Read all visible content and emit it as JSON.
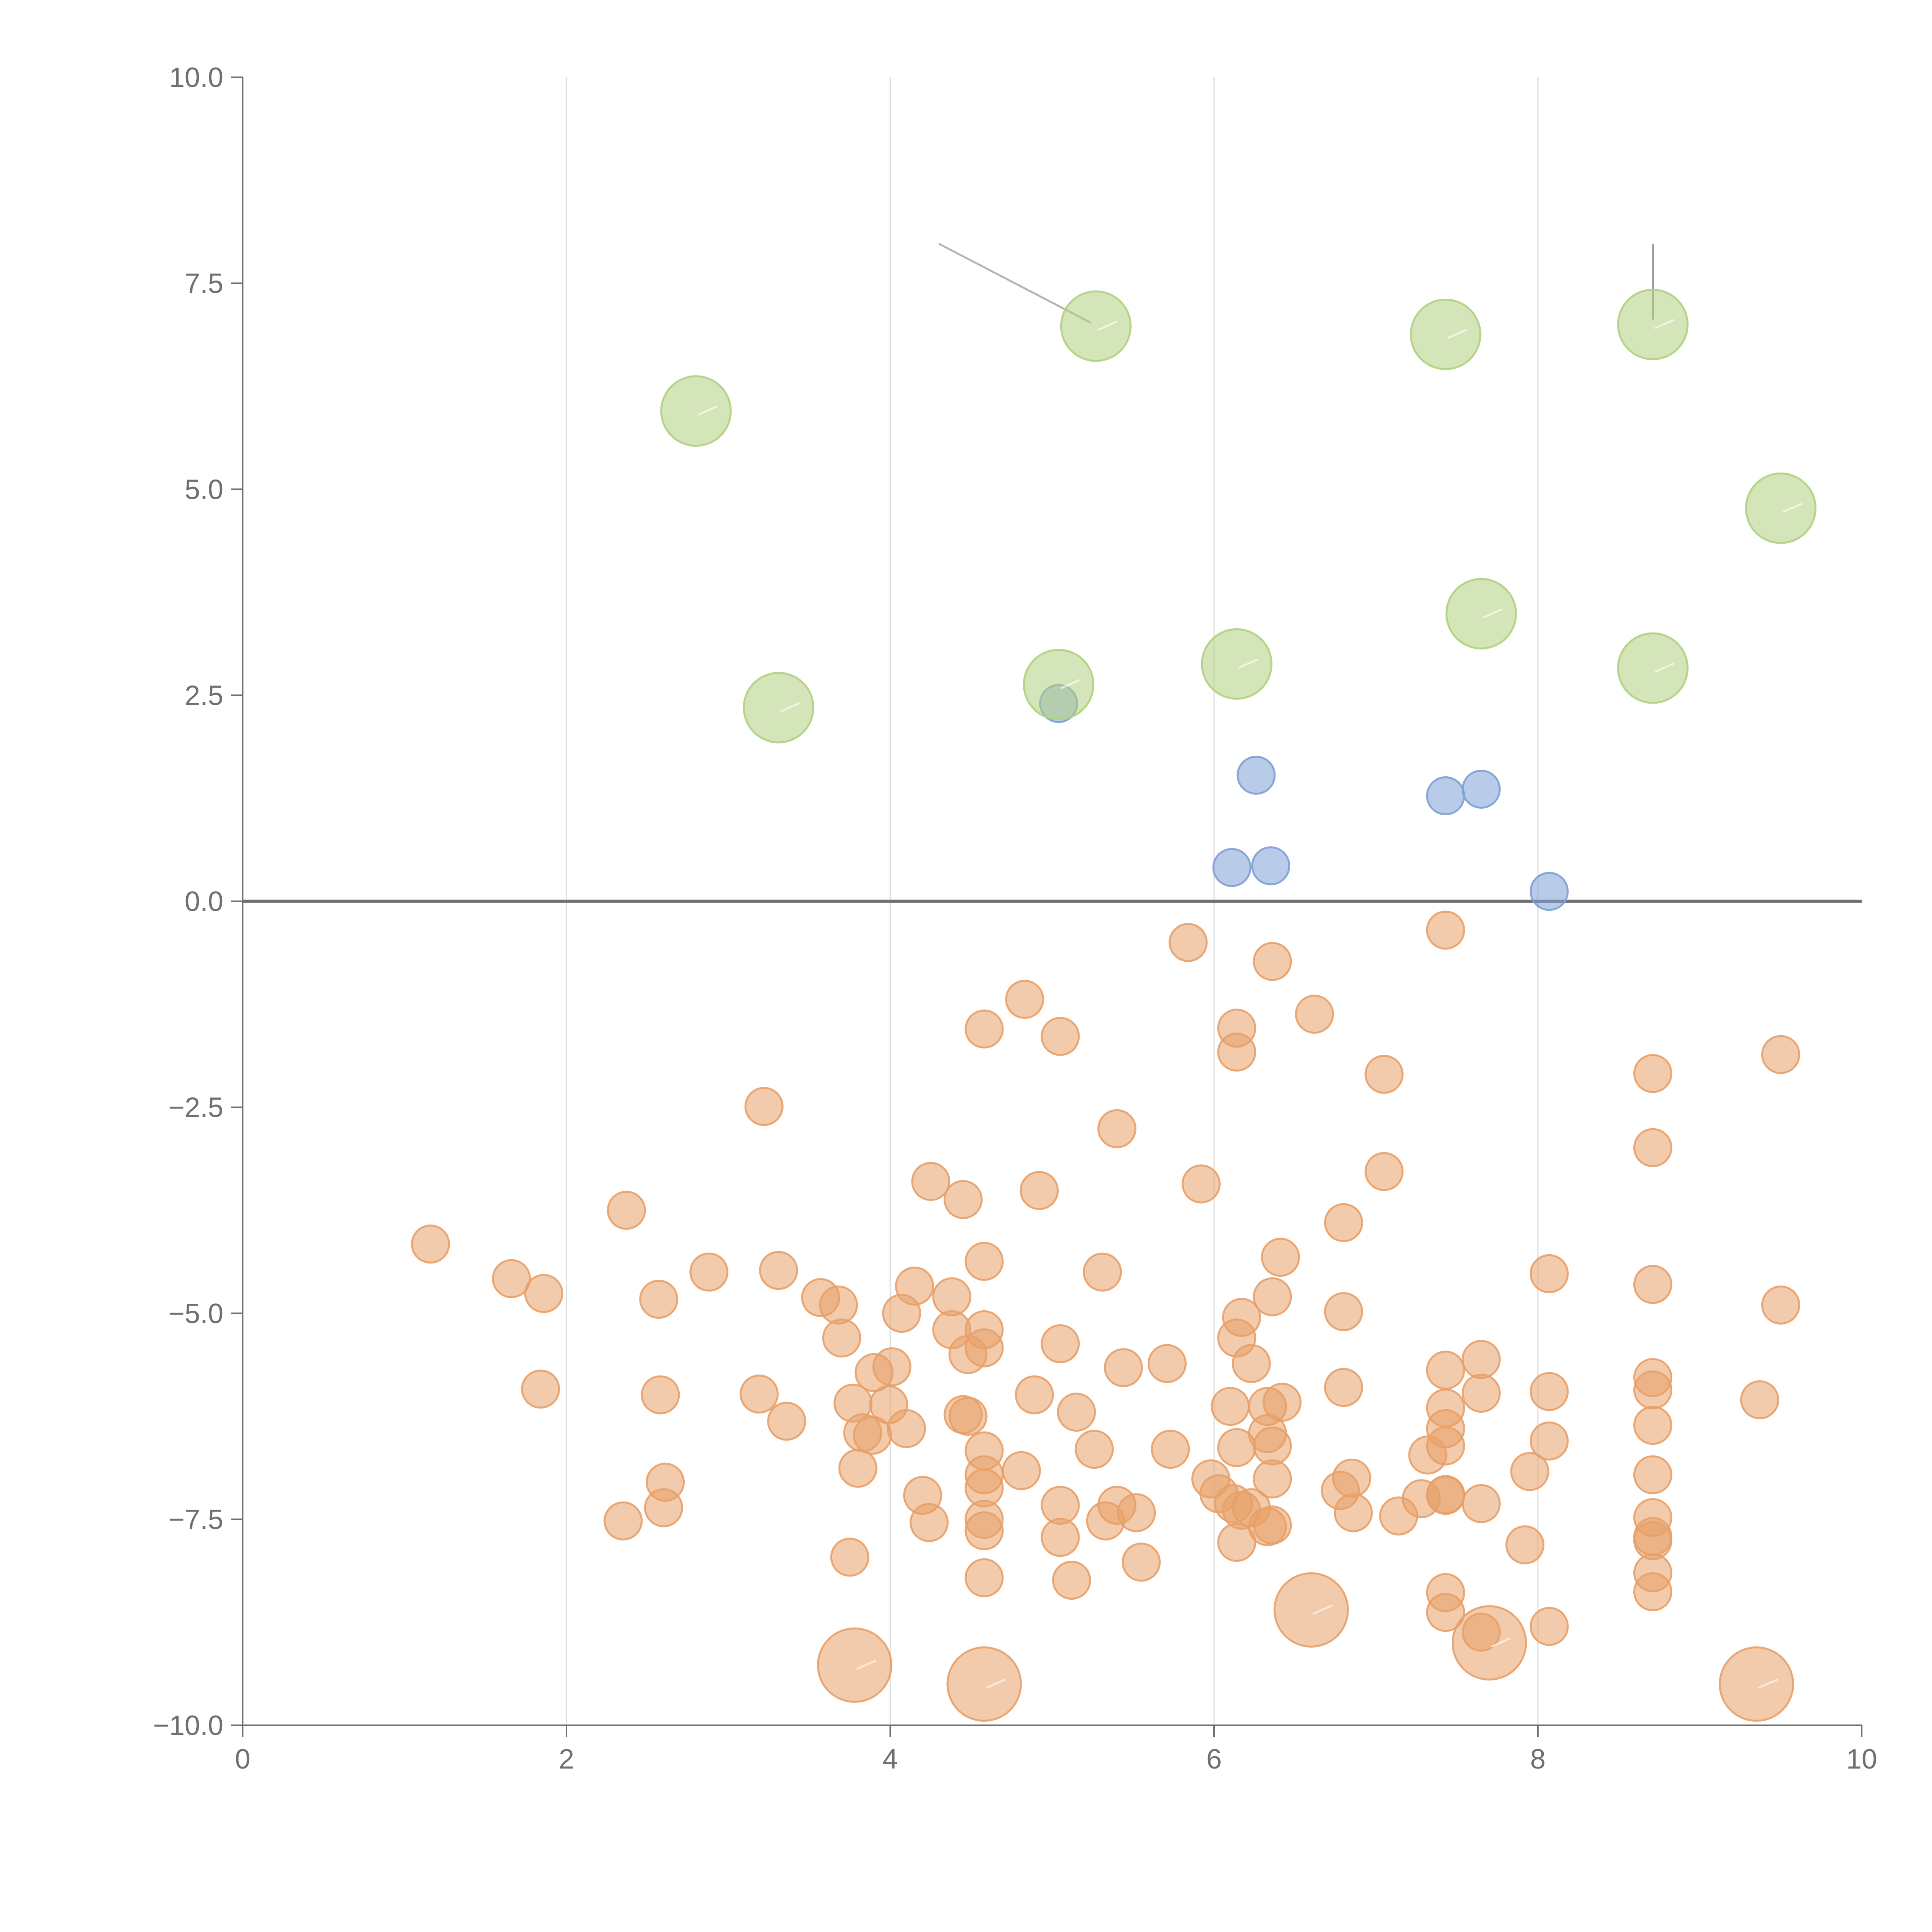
{
  "chart_data": {
    "type": "scatter",
    "title": "",
    "xlabel": "",
    "ylabel": "",
    "xlim": [
      0,
      10
    ],
    "ylim": [
      -10,
      10
    ],
    "x_ticks": [
      "0",
      "2",
      "4",
      "6",
      "8",
      "10"
    ],
    "y_ticks": [
      "−10.0",
      "−7.5",
      "−5.0",
      "−2.5",
      "0.0",
      "2.5",
      "5.0",
      "7.5",
      "10.0"
    ],
    "grid": "vertical",
    "zero_line": true,
    "colors": {
      "orange": "#e8a068",
      "blue": "#7ea0d6",
      "green": "#b0d080",
      "axis": "#707070",
      "grid": "#dddddd"
    },
    "series": [
      {
        "color": "orange",
        "points": [
          [
            7.43,
            -0.35
          ],
          [
            5.84,
            -0.5
          ],
          [
            6.36,
            -0.73
          ],
          [
            4.83,
            -1.19
          ],
          [
            6.62,
            -1.37
          ],
          [
            4.58,
            -1.55
          ],
          [
            6.14,
            -1.54
          ],
          [
            5.05,
            -1.64
          ],
          [
            6.14,
            -1.83
          ],
          [
            9.5,
            -1.86
          ],
          [
            7.05,
            -2.1
          ],
          [
            8.71,
            -2.09
          ],
          [
            3.22,
            -2.49
          ],
          [
            5.4,
            -2.76
          ],
          [
            8.71,
            -2.99
          ],
          [
            7.05,
            -3.28
          ],
          [
            4.25,
            -3.4
          ],
          [
            5.92,
            -3.43
          ],
          [
            4.92,
            -3.51
          ],
          [
            4.45,
            -3.62
          ],
          [
            2.37,
            -3.75
          ],
          [
            6.8,
            -3.9
          ],
          [
            1.16,
            -4.16
          ],
          [
            2.88,
            -4.5
          ],
          [
            3.31,
            -4.48
          ],
          [
            4.58,
            -4.37
          ],
          [
            5.31,
            -4.5
          ],
          [
            6.41,
            -4.32
          ],
          [
            8.07,
            -4.52
          ],
          [
            1.66,
            -4.58
          ],
          [
            1.86,
            -4.76
          ],
          [
            4.15,
            -4.67
          ],
          [
            6.36,
            -4.8
          ],
          [
            8.71,
            -4.65
          ],
          [
            2.57,
            -4.83
          ],
          [
            3.57,
            -4.81
          ],
          [
            3.68,
            -4.9
          ],
          [
            4.38,
            -4.8
          ],
          [
            9.5,
            -4.9
          ],
          [
            4.07,
            -5.0
          ],
          [
            6.8,
            -4.98
          ],
          [
            6.17,
            -5.05
          ],
          [
            4.38,
            -5.2
          ],
          [
            4.58,
            -5.2
          ],
          [
            3.7,
            -5.3
          ],
          [
            6.14,
            -5.3
          ],
          [
            4.58,
            -5.42
          ],
          [
            5.05,
            -5.37
          ],
          [
            4.48,
            -5.5
          ],
          [
            7.65,
            -5.56
          ],
          [
            6.23,
            -5.61
          ],
          [
            5.71,
            -5.61
          ],
          [
            4.01,
            -5.65
          ],
          [
            5.44,
            -5.66
          ],
          [
            3.9,
            -5.72
          ],
          [
            7.43,
            -5.69
          ],
          [
            8.71,
            -5.78
          ],
          [
            1.84,
            -5.92
          ],
          [
            2.58,
            -5.99
          ],
          [
            3.19,
            -5.98
          ],
          [
            3.77,
            -6.09
          ],
          [
            4.89,
            -5.99
          ],
          [
            6.8,
            -5.9
          ],
          [
            8.07,
            -5.95
          ],
          [
            7.65,
            -5.97
          ],
          [
            8.71,
            -5.93
          ],
          [
            9.37,
            -6.05
          ],
          [
            3.99,
            -6.11
          ],
          [
            6.1,
            -6.13
          ],
          [
            6.33,
            -6.13
          ],
          [
            6.42,
            -6.08
          ],
          [
            7.43,
            -6.15
          ],
          [
            4.45,
            -6.23
          ],
          [
            4.48,
            -6.25
          ],
          [
            5.15,
            -6.2
          ],
          [
            3.36,
            -6.31
          ],
          [
            4.1,
            -6.4
          ],
          [
            3.83,
            -6.45
          ],
          [
            3.89,
            -6.48
          ],
          [
            6.33,
            -6.46
          ],
          [
            7.43,
            -6.4
          ],
          [
            8.71,
            -6.36
          ],
          [
            8.07,
            -6.55
          ],
          [
            5.73,
            -6.65
          ],
          [
            5.26,
            -6.65
          ],
          [
            6.14,
            -6.63
          ],
          [
            6.36,
            -6.61
          ],
          [
            7.43,
            -6.61
          ],
          [
            4.58,
            -6.67
          ],
          [
            7.32,
            -6.72
          ],
          [
            3.8,
            -6.88
          ],
          [
            4.81,
            -6.91
          ],
          [
            7.95,
            -6.92
          ],
          [
            4.58,
            -6.96
          ],
          [
            8.71,
            -6.96
          ],
          [
            5.98,
            -7.01
          ],
          [
            6.36,
            -7.01
          ],
          [
            2.61,
            -7.05
          ],
          [
            6.85,
            -7.0
          ],
          [
            4.58,
            -7.12
          ],
          [
            6.78,
            -7.15
          ],
          [
            6.03,
            -7.19
          ],
          [
            4.2,
            -7.21
          ],
          [
            7.43,
            -7.2
          ],
          [
            7.43,
            -7.21
          ],
          [
            7.28,
            -7.25
          ],
          [
            6.12,
            -7.31
          ],
          [
            6.23,
            -7.36
          ],
          [
            7.65,
            -7.31
          ],
          [
            5.05,
            -7.33
          ],
          [
            5.4,
            -7.33
          ],
          [
            5.52,
            -7.42
          ],
          [
            6.17,
            -7.39
          ],
          [
            2.6,
            -7.36
          ],
          [
            6.86,
            -7.42
          ],
          [
            7.14,
            -7.46
          ],
          [
            5.33,
            -7.52
          ],
          [
            4.58,
            -7.5
          ],
          [
            8.71,
            -7.48
          ],
          [
            2.35,
            -7.52
          ],
          [
            4.24,
            -7.54
          ],
          [
            6.33,
            -7.59
          ],
          [
            6.36,
            -7.57
          ],
          [
            4.58,
            -7.64
          ],
          [
            5.05,
            -7.72
          ],
          [
            8.71,
            -7.71
          ],
          [
            8.71,
            -7.76
          ],
          [
            6.14,
            -7.78
          ],
          [
            7.92,
            -7.81
          ],
          [
            3.75,
            -7.96
          ],
          [
            5.55,
            -8.02
          ],
          [
            8.71,
            -8.15
          ],
          [
            4.58,
            -8.21
          ],
          [
            5.12,
            -8.24
          ],
          [
            8.71,
            -8.38
          ],
          [
            7.43,
            -8.39
          ],
          [
            8.07,
            -8.8
          ],
          [
            7.43,
            -8.63
          ],
          [
            7.65,
            -8.87
          ]
        ]
      },
      {
        "color": "orange",
        "size": "large",
        "points": [
          [
            6.6,
            -8.6
          ],
          [
            7.7,
            -9.0
          ],
          [
            3.78,
            -9.27
          ],
          [
            4.58,
            -9.5
          ],
          [
            9.35,
            -9.5
          ]
        ]
      },
      {
        "color": "blue",
        "points": [
          [
            5.04,
            2.4
          ],
          [
            6.26,
            1.53
          ],
          [
            7.43,
            1.28
          ],
          [
            7.65,
            1.36
          ],
          [
            6.11,
            0.41
          ],
          [
            6.35,
            0.43
          ],
          [
            8.07,
            0.12
          ]
        ]
      },
      {
        "color": "green",
        "size": "large",
        "points": [
          [
            2.8,
            5.95
          ],
          [
            5.27,
            6.98
          ],
          [
            7.43,
            6.88
          ],
          [
            8.71,
            7.0
          ],
          [
            9.5,
            4.77
          ],
          [
            3.31,
            2.35
          ],
          [
            5.04,
            2.63
          ],
          [
            6.14,
            2.88
          ],
          [
            7.65,
            3.49
          ],
          [
            8.71,
            2.83
          ]
        ]
      }
    ],
    "annotations": [
      {
        "from": [
          4.3,
          7.98
        ],
        "to": [
          5.24,
          7.02
        ],
        "color": "#b4b4b4"
      },
      {
        "from": [
          8.71,
          7.98
        ],
        "to": [
          8.71,
          7.06
        ],
        "color": "#a0a0a0"
      }
    ]
  }
}
